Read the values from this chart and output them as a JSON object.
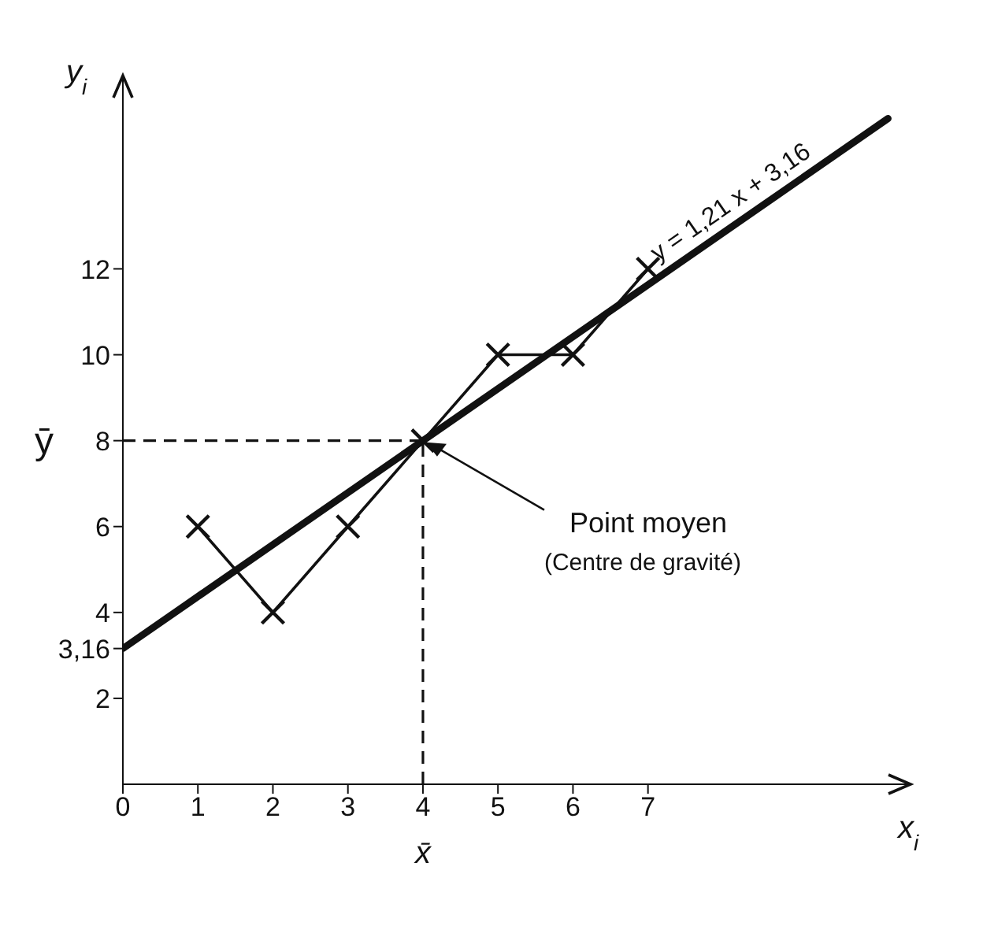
{
  "chart_data": {
    "type": "line",
    "xlabel": "x$_{i}$",
    "ylabel": "y$_{i}$",
    "xlim": [
      0,
      10.5
    ],
    "ylim": [
      0,
      16.5
    ],
    "xticks": [
      0,
      1,
      2,
      3,
      4,
      5,
      6,
      7
    ],
    "yticks": [
      2,
      {
        "value": 3.16,
        "label": "3,16"
      },
      4,
      6,
      8,
      10,
      12
    ],
    "grid": false,
    "legend": false,
    "series": [
      {
        "color": "#111111",
        "marker": "cross",
        "x": [
          1,
          2,
          3,
          4,
          5,
          6,
          7
        ],
        "values": [
          6,
          4,
          6,
          8,
          10,
          10,
          12
        ]
      },
      {
        "name": "y = 1,21 x + 3,16",
        "color": "#111111",
        "marker": "none",
        "x": [
          0,
          10.2
        ],
        "values": [
          3.16,
          15.5
        ]
      }
    ],
    "ref_lines": [
      {
        "axis": "x",
        "value": 4,
        "label": "x̄",
        "line_style": "dashed",
        "color": "#111111"
      },
      {
        "axis": "y",
        "value": 8,
        "label": "ȳ",
        "line_style": "dashed",
        "color": "#111111"
      }
    ],
    "annotations": [
      {
        "text": "Point moyen",
        "x": 4,
        "y": 8
      },
      "(Centre de gravité)"
    ]
  }
}
